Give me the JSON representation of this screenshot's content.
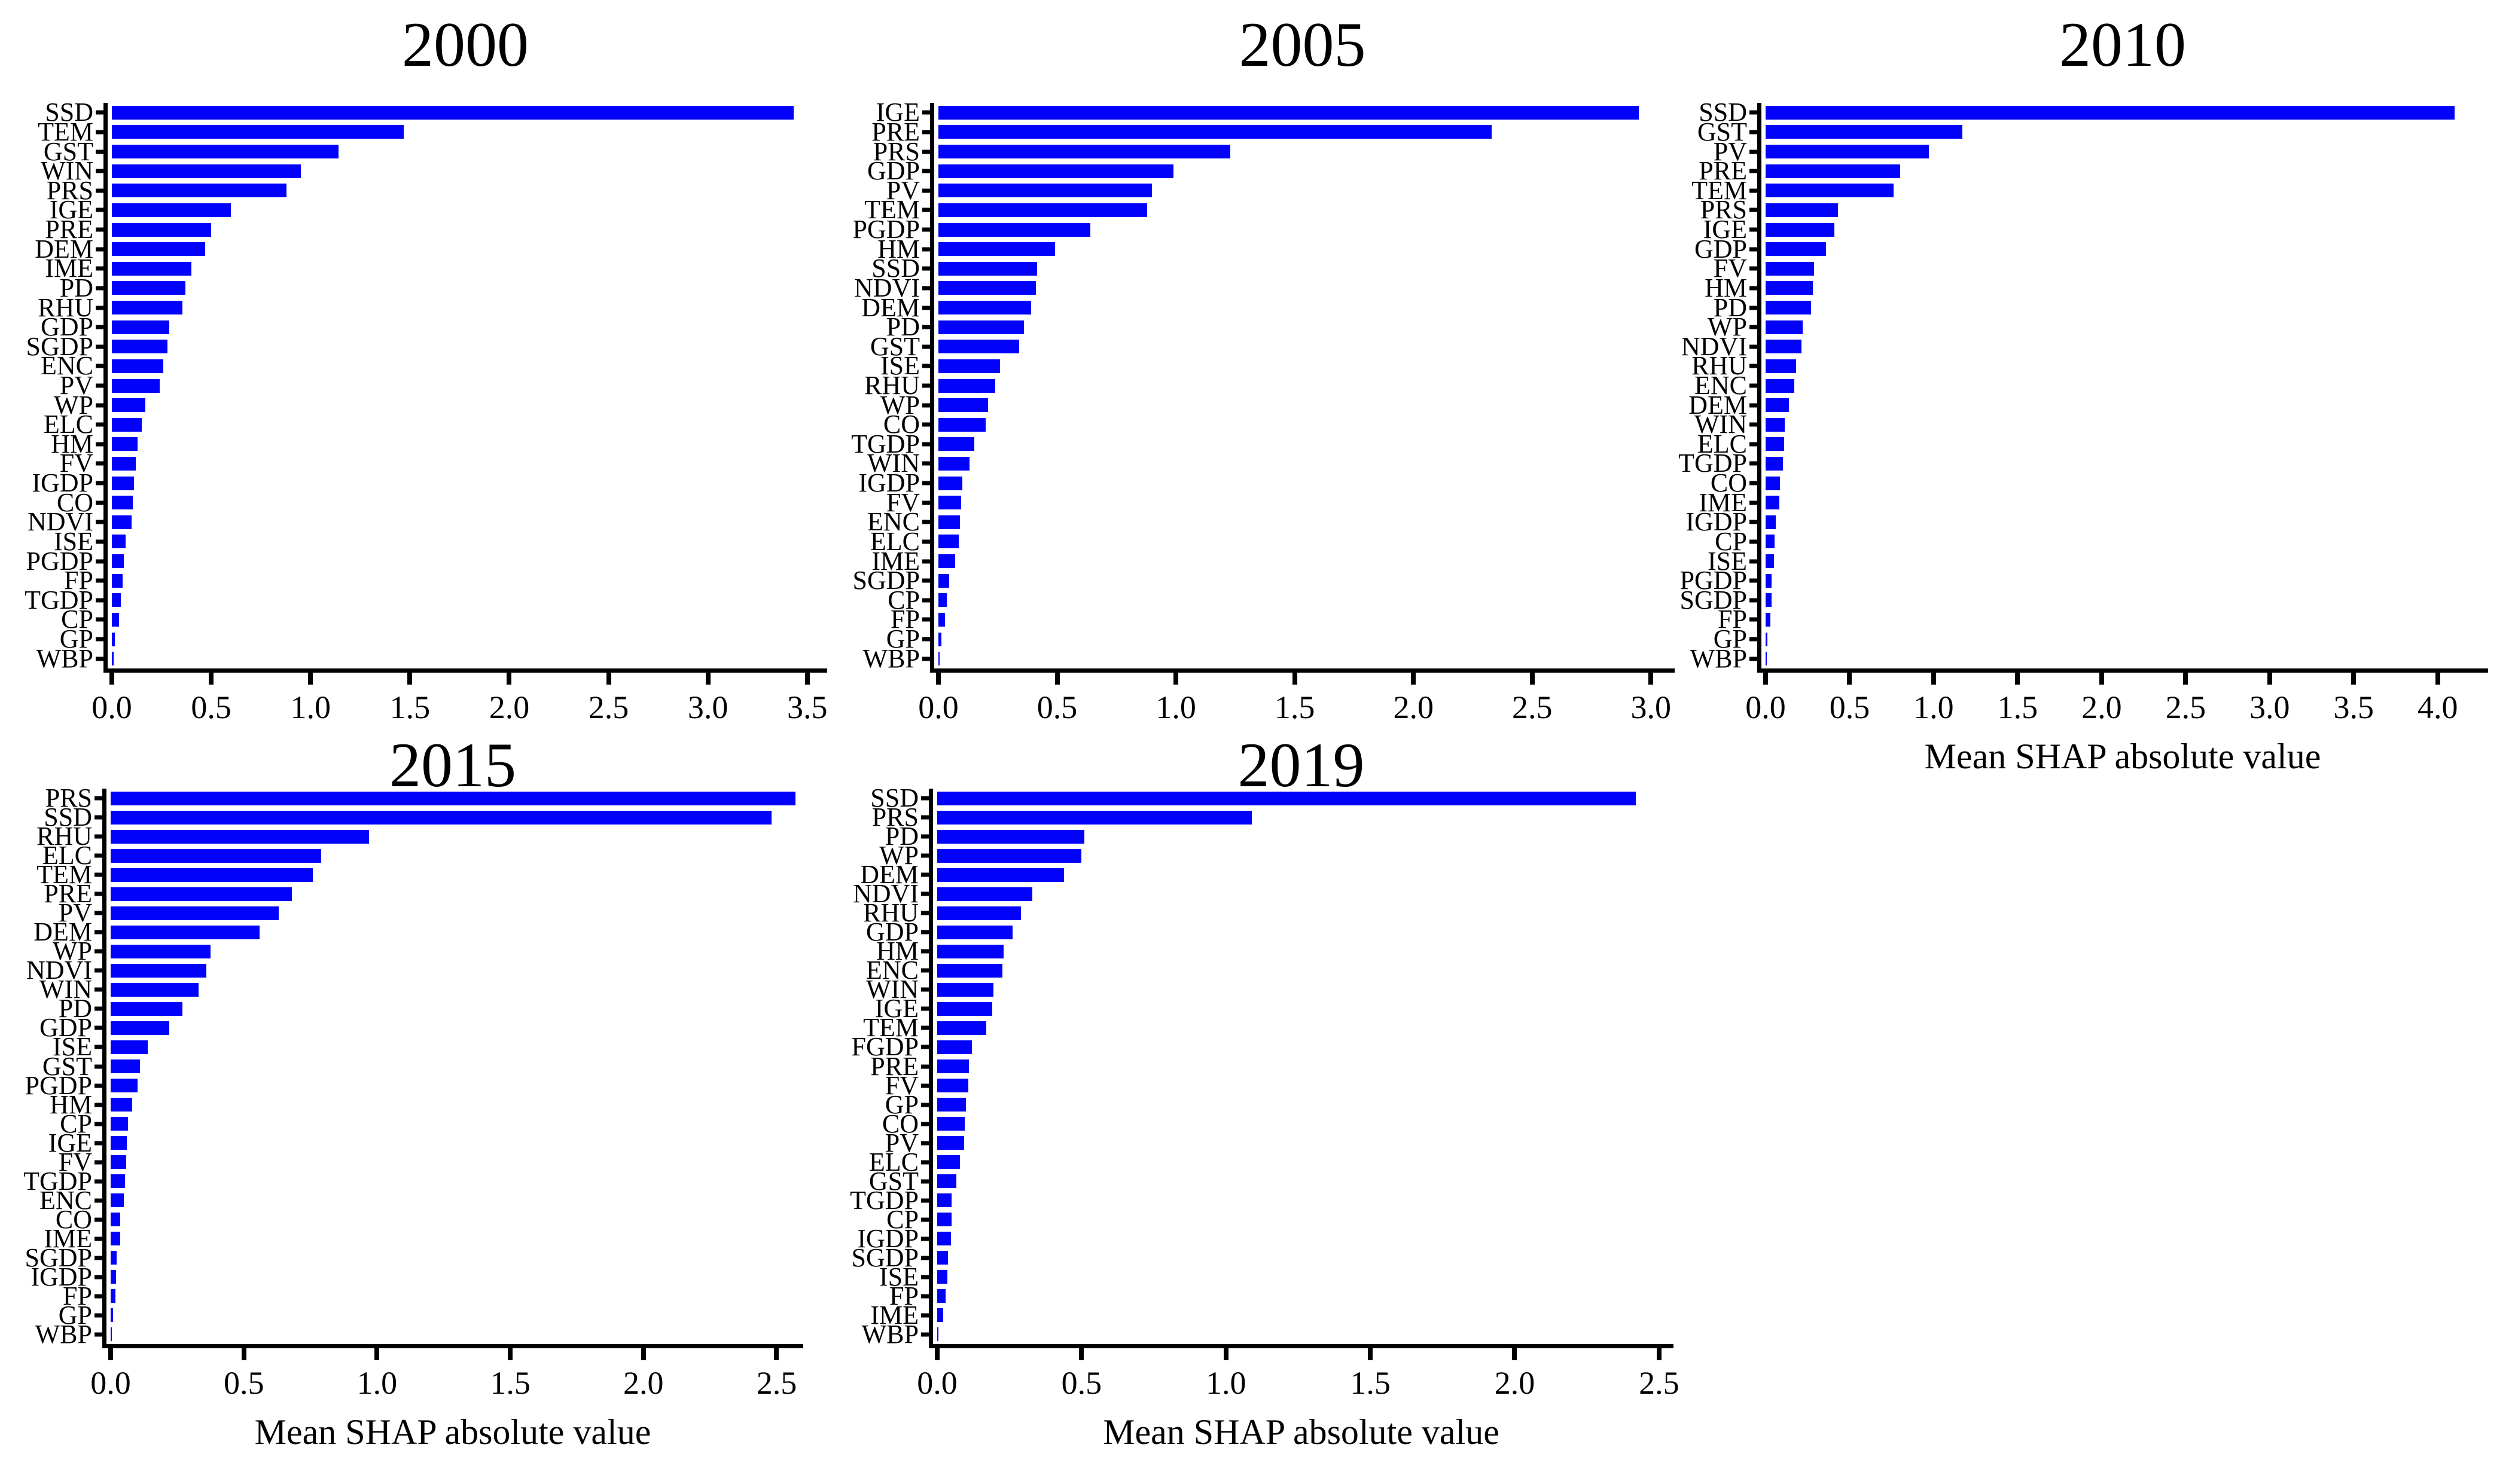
{
  "figure": {
    "background_color": "#ffffff",
    "bar_color": "#0202fb",
    "axis_color": "#000000",
    "shared_xlabel": "Mean SHAP absolute value"
  },
  "chart_data": [
    {
      "type": "bar",
      "orientation": "horizontal",
      "title": "2000",
      "xlabel": "",
      "ylabel": "",
      "xlim": [
        0,
        3.6
      ],
      "xticks": [
        0.0,
        0.5,
        1.0,
        1.5,
        2.0,
        2.5,
        3.0,
        3.5
      ],
      "categories": [
        "SSD",
        "TEM",
        "GST",
        "WIN",
        "PRS",
        "IGE",
        "PRE",
        "DEM",
        "IME",
        "PD",
        "RHU",
        "GDP",
        "SGDP",
        "ENC",
        "PV",
        "WP",
        "ELC",
        "HM",
        "FV",
        "IGDP",
        "CO",
        "NDVI",
        "ISE",
        "PGDP",
        "FP",
        "TGDP",
        "CP",
        "GP",
        "WBP"
      ],
      "values": [
        3.43,
        1.47,
        1.14,
        0.95,
        0.88,
        0.6,
        0.5,
        0.47,
        0.4,
        0.37,
        0.355,
        0.29,
        0.28,
        0.26,
        0.24,
        0.17,
        0.15,
        0.13,
        0.12,
        0.11,
        0.105,
        0.1,
        0.07,
        0.06,
        0.055,
        0.045,
        0.035,
        0.015,
        0.008
      ]
    },
    {
      "type": "bar",
      "orientation": "horizontal",
      "title": "2005",
      "xlabel": "",
      "ylabel": "",
      "xlim": [
        0,
        3.1
      ],
      "xticks": [
        0.0,
        0.5,
        1.0,
        1.5,
        2.0,
        2.5,
        3.0
      ],
      "categories": [
        "IGE",
        "PRE",
        "PRS",
        "GDP",
        "PV",
        "TEM",
        "PGDP",
        "HM",
        "SSD",
        "NDVI",
        "DEM",
        "PD",
        "GST",
        "ISE",
        "RHU",
        "WP",
        "CO",
        "TGDP",
        "WIN",
        "IGDP",
        "FV",
        "ENC",
        "ELC",
        "IME",
        "SGDP",
        "CP",
        "FP",
        "GP",
        "WBP"
      ],
      "values": [
        2.95,
        2.33,
        1.23,
        0.99,
        0.9,
        0.88,
        0.64,
        0.49,
        0.415,
        0.41,
        0.39,
        0.36,
        0.34,
        0.26,
        0.24,
        0.21,
        0.2,
        0.15,
        0.13,
        0.1,
        0.095,
        0.09,
        0.085,
        0.07,
        0.045,
        0.035,
        0.027,
        0.012,
        0.006
      ]
    },
    {
      "type": "bar",
      "orientation": "horizontal",
      "title": "2010",
      "xlabel": "Mean SHAP absolute value",
      "ylabel": "",
      "xlim": [
        0,
        4.3
      ],
      "xticks": [
        0.0,
        0.5,
        1.0,
        1.5,
        2.0,
        2.5,
        3.0,
        3.5,
        4.0
      ],
      "categories": [
        "SSD",
        "GST",
        "PV",
        "PRE",
        "TEM",
        "PRS",
        "IGE",
        "GDP",
        "FV",
        "HM",
        "PD",
        "WP",
        "NDVI",
        "RHU",
        "ENC",
        "DEM",
        "WIN",
        "ELC",
        "TGDP",
        "CO",
        "IME",
        "IGDP",
        "CP",
        "ISE",
        "PGDP",
        "SGDP",
        "FP",
        "GP",
        "WBP"
      ],
      "values": [
        4.1,
        1.17,
        0.97,
        0.8,
        0.76,
        0.43,
        0.41,
        0.36,
        0.29,
        0.28,
        0.27,
        0.22,
        0.215,
        0.18,
        0.17,
        0.14,
        0.115,
        0.11,
        0.105,
        0.085,
        0.083,
        0.06,
        0.055,
        0.05,
        0.037,
        0.035,
        0.028,
        0.012,
        0.006
      ]
    },
    {
      "type": "bar",
      "orientation": "horizontal",
      "title": "2015",
      "xlabel": "Mean SHAP absolute value",
      "ylabel": "",
      "xlim": [
        0,
        2.6
      ],
      "xticks": [
        0.0,
        0.5,
        1.0,
        1.5,
        2.0,
        2.5
      ],
      "categories": [
        "PRS",
        "SSD",
        "RHU",
        "ELC",
        "TEM",
        "PRE",
        "PV",
        "DEM",
        "WP",
        "NDVI",
        "WIN",
        "PD",
        "GDP",
        "ISE",
        "GST",
        "PGDP",
        "HM",
        "CP",
        "IGE",
        "FV",
        "TGDP",
        "ENC",
        "CO",
        "IME",
        "SGDP",
        "IGDP",
        "FP",
        "GP",
        "WBP"
      ],
      "values": [
        2.57,
        2.48,
        0.97,
        0.79,
        0.76,
        0.68,
        0.63,
        0.56,
        0.375,
        0.36,
        0.33,
        0.27,
        0.22,
        0.14,
        0.11,
        0.1,
        0.08,
        0.065,
        0.06,
        0.058,
        0.055,
        0.05,
        0.037,
        0.036,
        0.022,
        0.021,
        0.018,
        0.008,
        0.004
      ]
    },
    {
      "type": "bar",
      "orientation": "horizontal",
      "title": "2019",
      "xlabel": "Mean SHAP absolute value",
      "ylabel": "",
      "xlim": [
        0,
        2.55
      ],
      "xticks": [
        0.0,
        0.5,
        1.0,
        1.5,
        2.0,
        2.5
      ],
      "categories": [
        "SSD",
        "PRS",
        "PD",
        "WP",
        "DEM",
        "NDVI",
        "RHU",
        "GDP",
        "HM",
        "ENC",
        "WIN",
        "IGE",
        "TEM",
        "FGDP",
        "PRE",
        "FV",
        "GP",
        "CO",
        "PV",
        "ELC",
        "GST",
        "TGDP",
        "CP",
        "IGDP",
        "SGDP",
        "ISE",
        "FP",
        "IME",
        "WBP"
      ],
      "values": [
        2.42,
        1.09,
        0.51,
        0.5,
        0.44,
        0.33,
        0.29,
        0.26,
        0.23,
        0.225,
        0.195,
        0.19,
        0.17,
        0.12,
        0.11,
        0.107,
        0.1,
        0.096,
        0.094,
        0.079,
        0.066,
        0.05,
        0.049,
        0.047,
        0.038,
        0.035,
        0.028,
        0.021,
        0.004
      ]
    }
  ]
}
